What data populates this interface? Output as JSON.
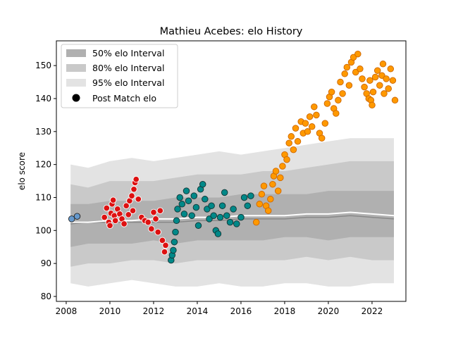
{
  "chart_data": {
    "type": "scatter",
    "title": "Mathieu Acebes: elo History",
    "xlabel": "",
    "ylabel": "elo score",
    "xlim": [
      2007.55,
      2023.55
    ],
    "ylim": [
      78.5,
      157.5
    ],
    "xticks": [
      2008,
      2010,
      2012,
      2014,
      2016,
      2018,
      2020,
      2022
    ],
    "yticks": [
      80,
      90,
      100,
      110,
      120,
      130,
      140,
      150
    ],
    "grid": false,
    "legend": {
      "placement": "top-left",
      "entries": [
        "50% elo Interval",
        "80% elo Interval",
        "95% elo Interval",
        "Post Match elo"
      ]
    },
    "colors": {
      "band_50": "#b0b0b0",
      "band_80": "#c9c9c9",
      "band_95": "#e3e3e3",
      "median_line": "#ffffff",
      "mean_line": "#888888"
    },
    "bands": {
      "x": [
        2008.2,
        2009.0,
        2010.0,
        2011.0,
        2012.0,
        2013.0,
        2014.0,
        2015.0,
        2016.0,
        2017.0,
        2018.0,
        2019.0,
        2020.0,
        2021.0,
        2022.0,
        2023.0
      ],
      "p95_low": [
        84,
        83,
        84,
        85,
        84,
        83,
        83,
        84,
        83,
        83,
        84,
        84,
        83,
        83,
        84,
        84
      ],
      "p95_high": [
        120,
        119,
        121,
        122,
        121,
        122,
        123,
        124,
        123,
        124,
        125,
        126,
        127,
        128,
        128,
        128
      ],
      "p80_low": [
        89,
        90,
        90,
        91,
        91,
        90,
        91,
        91,
        91,
        91,
        91,
        92,
        91,
        92,
        91,
        91
      ],
      "p80_high": [
        114,
        113,
        115,
        115,
        115,
        116,
        117,
        117,
        117,
        118,
        118,
        119,
        120,
        121,
        121,
        121
      ],
      "p50_low": [
        95,
        96,
        96,
        96,
        97,
        96,
        97,
        97,
        97,
        97,
        98,
        98,
        97,
        98,
        98,
        98
      ],
      "p50_high": [
        108,
        108,
        109,
        109,
        109,
        110,
        110,
        110,
        111,
        111,
        111,
        111,
        112,
        112,
        112,
        112
      ]
    },
    "median_line": {
      "x": [
        2008.2,
        2009.0,
        2010.0,
        2011.0,
        2012.0,
        2013.0,
        2014.0,
        2015.0,
        2016.0,
        2017.0,
        2018.0,
        2019.0,
        2020.0,
        2021.0,
        2022.0,
        2023.0
      ],
      "y": [
        102.5,
        102.5,
        103,
        103,
        103.5,
        103.5,
        104,
        104,
        104.5,
        104.5,
        104.5,
        105,
        105,
        105.5,
        105,
        104.5
      ]
    },
    "mean_line": {
      "x": [
        2008.2,
        2009.0,
        2010.0,
        2011.0,
        2012.0,
        2013.0,
        2014.0,
        2015.0,
        2016.0,
        2017.0,
        2018.0,
        2019.0,
        2020.0,
        2021.0,
        2022.0,
        2023.0
      ],
      "y": [
        102,
        102.5,
        102.5,
        102.5,
        102.5,
        102.5,
        103,
        103,
        103.5,
        103.5,
        103.5,
        104,
        104,
        104.5,
        104,
        103.5
      ]
    },
    "series": [
      {
        "color": "#6699cc",
        "edge": "#222222",
        "points": [
          [
            2008.25,
            103.5
          ],
          [
            2008.5,
            104.3
          ]
        ]
      },
      {
        "color": "#dd1111",
        "edge": "#ffffff",
        "points": [
          [
            2009.75,
            104.0
          ],
          [
            2009.85,
            106.8
          ],
          [
            2009.95,
            102.5
          ],
          [
            2010.0,
            101.5
          ],
          [
            2010.05,
            105.2
          ],
          [
            2010.1,
            108.0
          ],
          [
            2010.15,
            109.2
          ],
          [
            2010.2,
            104.5
          ],
          [
            2010.25,
            103.0
          ],
          [
            2010.35,
            106.5
          ],
          [
            2010.45,
            105.0
          ],
          [
            2010.55,
            103.5
          ],
          [
            2010.65,
            102.0
          ],
          [
            2010.75,
            107.5
          ],
          [
            2010.85,
            104.8
          ],
          [
            2010.9,
            109.0
          ],
          [
            2011.0,
            110.5
          ],
          [
            2011.05,
            106.0
          ],
          [
            2011.1,
            112.5
          ],
          [
            2011.15,
            114.5
          ],
          [
            2011.2,
            115.5
          ],
          [
            2011.3,
            109.5
          ],
          [
            2011.45,
            104.0
          ],
          [
            2011.6,
            103.0
          ],
          [
            2011.75,
            102.5
          ],
          [
            2011.9,
            100.5
          ],
          [
            2012.0,
            105.5
          ],
          [
            2012.1,
            103.5
          ],
          [
            2012.2,
            99.5
          ],
          [
            2012.3,
            106.0
          ],
          [
            2012.4,
            97.0
          ],
          [
            2012.5,
            93.5
          ],
          [
            2012.55,
            95.5
          ]
        ]
      },
      {
        "color": "#008888",
        "edge": "#113333",
        "points": [
          [
            2012.8,
            91.0
          ],
          [
            2012.85,
            92.5
          ],
          [
            2012.9,
            94.0
          ],
          [
            2012.95,
            96.5
          ],
          [
            2013.0,
            99.5
          ],
          [
            2013.05,
            103.0
          ],
          [
            2013.1,
            106.5
          ],
          [
            2013.2,
            110.0
          ],
          [
            2013.3,
            108.0
          ],
          [
            2013.4,
            105.0
          ],
          [
            2013.5,
            112.0
          ],
          [
            2013.6,
            109.0
          ],
          [
            2013.75,
            104.5
          ],
          [
            2013.85,
            110.5
          ],
          [
            2013.95,
            107.0
          ],
          [
            2014.05,
            101.5
          ],
          [
            2014.15,
            112.5
          ],
          [
            2014.25,
            114.0
          ],
          [
            2014.35,
            109.5
          ],
          [
            2014.45,
            106.5
          ],
          [
            2014.55,
            103.5
          ],
          [
            2014.65,
            107.5
          ],
          [
            2014.75,
            104.5
          ],
          [
            2014.85,
            100.0
          ],
          [
            2014.95,
            99.0
          ],
          [
            2015.05,
            104.0
          ],
          [
            2015.15,
            107.5
          ],
          [
            2015.25,
            111.5
          ],
          [
            2015.35,
            104.5
          ],
          [
            2015.5,
            102.5
          ],
          [
            2015.65,
            106.5
          ],
          [
            2015.8,
            102.0
          ],
          [
            2016.0,
            104.0
          ],
          [
            2016.15,
            110.0
          ],
          [
            2016.3,
            107.5
          ],
          [
            2016.45,
            110.5
          ]
        ]
      },
      {
        "color": "#ff9900",
        "edge": "#cc6600",
        "points": [
          [
            2016.7,
            102.5
          ],
          [
            2016.85,
            108.0
          ],
          [
            2016.95,
            111.0
          ],
          [
            2017.05,
            113.5
          ],
          [
            2017.15,
            107.5
          ],
          [
            2017.25,
            106.0
          ],
          [
            2017.35,
            109.5
          ],
          [
            2017.45,
            114.0
          ],
          [
            2017.5,
            116.5
          ],
          [
            2017.6,
            118.0
          ],
          [
            2017.7,
            112.0
          ],
          [
            2017.8,
            116.0
          ],
          [
            2017.9,
            119.5
          ],
          [
            2018.0,
            123.0
          ],
          [
            2018.1,
            121.5
          ],
          [
            2018.2,
            126.5
          ],
          [
            2018.3,
            128.5
          ],
          [
            2018.4,
            124.5
          ],
          [
            2018.5,
            131.0
          ],
          [
            2018.6,
            127.0
          ],
          [
            2018.75,
            133.0
          ],
          [
            2018.85,
            129.5
          ],
          [
            2018.95,
            132.5
          ],
          [
            2019.05,
            130.0
          ],
          [
            2019.15,
            134.5
          ],
          [
            2019.25,
            131.5
          ],
          [
            2019.35,
            137.5
          ],
          [
            2019.45,
            135.0
          ],
          [
            2019.6,
            129.5
          ],
          [
            2019.7,
            128.0
          ],
          [
            2019.85,
            132.5
          ],
          [
            2019.95,
            138.5
          ],
          [
            2020.05,
            140.5
          ],
          [
            2020.15,
            142.0
          ],
          [
            2020.25,
            137.0
          ],
          [
            2020.35,
            135.5
          ],
          [
            2020.45,
            139.5
          ],
          [
            2020.55,
            145.0
          ],
          [
            2020.65,
            141.5
          ],
          [
            2020.75,
            147.5
          ],
          [
            2020.85,
            149.5
          ],
          [
            2020.95,
            144.0
          ],
          [
            2021.05,
            151.0
          ],
          [
            2021.15,
            152.5
          ],
          [
            2021.25,
            148.0
          ],
          [
            2021.35,
            153.5
          ],
          [
            2021.45,
            149.0
          ],
          [
            2021.55,
            146.0
          ],
          [
            2021.65,
            143.5
          ],
          [
            2021.75,
            141.5
          ],
          [
            2021.85,
            140.0
          ],
          [
            2021.95,
            139.5
          ],
          [
            2022.05,
            142.0
          ],
          [
            2022.15,
            146.5
          ],
          [
            2022.25,
            148.5
          ],
          [
            2022.35,
            144.0
          ],
          [
            2022.45,
            147.0
          ],
          [
            2022.55,
            141.5
          ],
          [
            2022.65,
            146.0
          ],
          [
            2022.75,
            143.0
          ],
          [
            2022.85,
            149.0
          ],
          [
            2022.95,
            145.5
          ],
          [
            2023.05,
            139.5
          ],
          [
            2022.5,
            150.5
          ],
          [
            2022.0,
            138.0
          ],
          [
            2021.9,
            145.5
          ]
        ]
      }
    ]
  }
}
